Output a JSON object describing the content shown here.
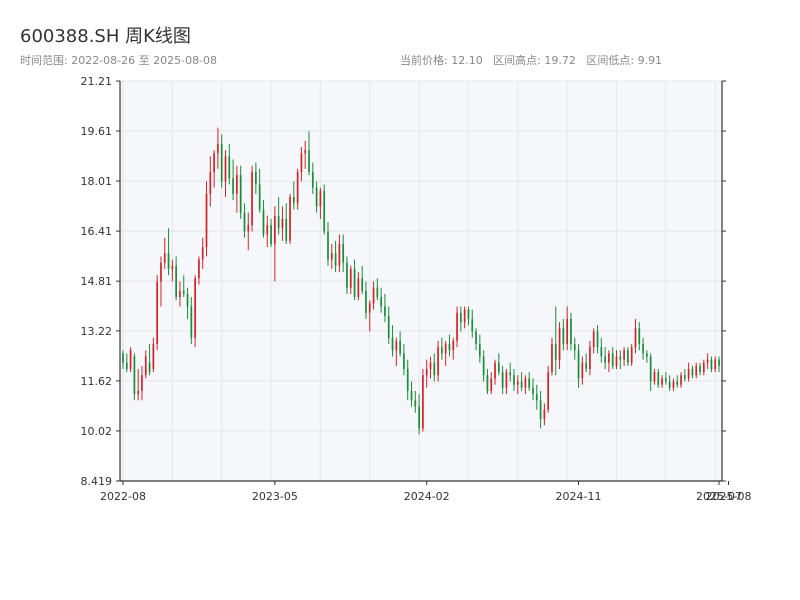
{
  "header": {
    "title": "600388.SH 周K线图",
    "range_text": "时间范围: 2022-08-26 至 2025-08-08",
    "stats_text": "当前价格: 12.10   区间高点: 19.72   区间低点: 9.91"
  },
  "colors": {
    "up": "#d0242a",
    "down": "#1a8c3b",
    "plot_bg": "#f5f7fa",
    "grid": "#e3e6ec",
    "axis": "#333333",
    "tick_text": "#333333"
  },
  "chart_data": {
    "type": "candlestick",
    "title": "600388.SH 周K线图",
    "ylim": [
      8.419,
      21.21
    ],
    "y_ticks": [
      "8.419",
      "10.02",
      "11.62",
      "13.22",
      "14.81",
      "16.41",
      "18.01",
      "19.61",
      "21.21"
    ],
    "y_tick_values": [
      8.419,
      10.02,
      11.62,
      13.22,
      14.81,
      16.41,
      18.01,
      19.61,
      21.21
    ],
    "x_ticks": [
      "2022-08",
      "2023-05",
      "2024-02",
      "2024-11",
      "2025-07",
      "2025-08"
    ],
    "x_tick_weeks": [
      0,
      40,
      80,
      120,
      157,
      159.5
    ],
    "grid": true,
    "candles_ohlc": [
      [
        12.5,
        12.6,
        12.0,
        12.2
      ],
      [
        12.2,
        12.5,
        11.9,
        12.0
      ],
      [
        12.0,
        12.7,
        11.9,
        12.6
      ],
      [
        12.4,
        12.5,
        11.0,
        11.2
      ],
      [
        11.2,
        12.0,
        11.0,
        11.3
      ],
      [
        11.3,
        12.1,
        11.0,
        11.8
      ],
      [
        11.8,
        12.6,
        11.7,
        12.4
      ],
      [
        12.2,
        12.8,
        11.8,
        11.9
      ],
      [
        12.0,
        13.0,
        11.9,
        12.8
      ],
      [
        12.8,
        15.0,
        12.6,
        14.8
      ],
      [
        14.8,
        15.6,
        14.0,
        15.4
      ],
      [
        15.4,
        16.2,
        15.2,
        15.7
      ],
      [
        15.7,
        16.5,
        15.0,
        15.2
      ],
      [
        15.2,
        15.5,
        14.8,
        15.3
      ],
      [
        15.3,
        15.6,
        14.2,
        14.3
      ],
      [
        14.3,
        14.8,
        14.0,
        14.5
      ],
      [
        14.5,
        15.0,
        14.3,
        14.4
      ],
      [
        14.4,
        14.6,
        13.6,
        14.0
      ],
      [
        14.0,
        14.3,
        12.8,
        13.0
      ],
      [
        13.0,
        15.0,
        12.7,
        14.9
      ],
      [
        14.9,
        15.6,
        14.7,
        15.5
      ],
      [
        15.5,
        16.2,
        15.2,
        15.9
      ],
      [
        15.9,
        18.0,
        15.6,
        17.6
      ],
      [
        17.6,
        18.8,
        17.2,
        18.3
      ],
      [
        18.3,
        19.0,
        17.8,
        18.9
      ],
      [
        18.9,
        19.72,
        18.4,
        19.2
      ],
      [
        19.2,
        19.5,
        17.8,
        18.0
      ],
      [
        18.0,
        19.0,
        17.5,
        18.8
      ],
      [
        18.8,
        19.2,
        17.9,
        18.1
      ],
      [
        18.1,
        18.7,
        17.4,
        17.6
      ],
      [
        17.6,
        18.5,
        17.0,
        18.2
      ],
      [
        18.2,
        18.5,
        16.8,
        17.0
      ],
      [
        17.0,
        17.3,
        16.2,
        16.4
      ],
      [
        16.4,
        17.0,
        15.8,
        16.6
      ],
      [
        16.6,
        18.5,
        16.4,
        18.3
      ],
      [
        18.3,
        18.6,
        17.6,
        17.9
      ],
      [
        17.9,
        18.4,
        17.0,
        17.1
      ],
      [
        17.1,
        17.4,
        16.2,
        16.3
      ],
      [
        16.3,
        16.9,
        15.9,
        16.6
      ],
      [
        16.6,
        16.8,
        15.9,
        16.0
      ],
      [
        16.0,
        17.2,
        14.8,
        16.9
      ],
      [
        16.9,
        17.5,
        16.3,
        16.5
      ],
      [
        16.5,
        17.2,
        16.1,
        16.8
      ],
      [
        16.8,
        17.3,
        16.0,
        16.1
      ],
      [
        16.1,
        17.6,
        16.0,
        17.5
      ],
      [
        17.5,
        18.0,
        17.1,
        17.3
      ],
      [
        17.3,
        18.4,
        17.1,
        18.3
      ],
      [
        18.3,
        19.1,
        18.0,
        18.9
      ],
      [
        18.9,
        19.3,
        18.4,
        19.0
      ],
      [
        19.0,
        19.6,
        18.2,
        18.3
      ],
      [
        18.3,
        18.6,
        17.6,
        17.8
      ],
      [
        17.8,
        18.0,
        17.0,
        17.2
      ],
      [
        17.2,
        17.8,
        16.8,
        17.7
      ],
      [
        17.7,
        17.9,
        16.3,
        16.4
      ],
      [
        16.4,
        16.7,
        15.3,
        15.5
      ],
      [
        15.5,
        16.0,
        15.2,
        15.7
      ],
      [
        15.7,
        16.1,
        15.1,
        15.3
      ],
      [
        15.3,
        16.3,
        15.1,
        16.0
      ],
      [
        16.0,
        16.3,
        15.1,
        15.4
      ],
      [
        15.4,
        15.6,
        14.4,
        14.6
      ],
      [
        14.6,
        15.3,
        14.4,
        15.2
      ],
      [
        15.2,
        15.5,
        14.2,
        14.3
      ],
      [
        14.3,
        15.1,
        14.2,
        14.9
      ],
      [
        14.9,
        15.3,
        14.4,
        14.5
      ],
      [
        14.5,
        14.8,
        13.6,
        13.8
      ],
      [
        13.8,
        14.2,
        13.2,
        14.1
      ],
      [
        14.1,
        14.8,
        13.9,
        14.6
      ],
      [
        14.6,
        14.9,
        14.2,
        14.3
      ],
      [
        14.3,
        14.6,
        13.8,
        14.0
      ],
      [
        14.0,
        14.4,
        13.5,
        13.7
      ],
      [
        13.7,
        14.0,
        12.8,
        13.0
      ],
      [
        13.0,
        13.4,
        12.4,
        12.6
      ],
      [
        12.6,
        13.0,
        12.1,
        12.9
      ],
      [
        12.9,
        13.2,
        12.4,
        12.5
      ],
      [
        12.5,
        12.8,
        11.8,
        12.0
      ],
      [
        12.0,
        12.3,
        11.0,
        11.3
      ],
      [
        11.3,
        11.6,
        10.8,
        11.0
      ],
      [
        11.0,
        11.3,
        10.6,
        10.8
      ],
      [
        10.8,
        11.2,
        9.91,
        10.1
      ],
      [
        10.1,
        12.0,
        10.0,
        11.8
      ],
      [
        11.8,
        12.3,
        11.4,
        12.0
      ],
      [
        12.0,
        12.4,
        11.7,
        12.2
      ],
      [
        12.2,
        12.5,
        11.6,
        11.8
      ],
      [
        11.8,
        12.9,
        11.6,
        12.7
      ],
      [
        12.7,
        13.0,
        12.3,
        12.5
      ],
      [
        12.5,
        12.9,
        12.1,
        12.8
      ],
      [
        12.8,
        13.1,
        12.4,
        12.6
      ],
      [
        12.6,
        13.0,
        12.3,
        12.9
      ],
      [
        12.9,
        14.0,
        12.7,
        13.8
      ],
      [
        13.8,
        14.0,
        13.2,
        13.5
      ],
      [
        13.5,
        14.0,
        13.3,
        13.9
      ],
      [
        13.9,
        14.0,
        13.4,
        13.6
      ],
      [
        13.6,
        13.9,
        13.0,
        13.2
      ],
      [
        13.2,
        13.3,
        12.6,
        12.8
      ],
      [
        12.8,
        13.1,
        12.2,
        12.4
      ],
      [
        12.4,
        12.6,
        11.6,
        11.8
      ],
      [
        11.8,
        12.0,
        11.2,
        11.3
      ],
      [
        11.3,
        11.9,
        11.2,
        11.7
      ],
      [
        11.7,
        12.3,
        11.5,
        12.2
      ],
      [
        12.2,
        12.5,
        11.8,
        11.9
      ],
      [
        11.9,
        12.1,
        11.2,
        11.4
      ],
      [
        11.4,
        12.0,
        11.2,
        11.9
      ],
      [
        11.9,
        12.2,
        11.6,
        11.8
      ],
      [
        11.8,
        12.0,
        11.3,
        11.5
      ],
      [
        11.5,
        11.8,
        11.2,
        11.6
      ],
      [
        11.6,
        11.9,
        11.3,
        11.4
      ],
      [
        11.4,
        11.8,
        11.2,
        11.7
      ],
      [
        11.7,
        11.9,
        11.3,
        11.4
      ],
      [
        11.4,
        11.7,
        11.0,
        11.2
      ],
      [
        11.2,
        11.5,
        10.7,
        11.0
      ],
      [
        11.0,
        11.3,
        10.1,
        10.4
      ],
      [
        10.4,
        10.9,
        10.2,
        10.7
      ],
      [
        10.7,
        12.1,
        10.6,
        11.9
      ],
      [
        11.9,
        13.0,
        11.8,
        12.8
      ],
      [
        12.8,
        14.0,
        11.8,
        12.3
      ],
      [
        12.3,
        13.5,
        12.0,
        13.3
      ],
      [
        13.3,
        13.6,
        12.6,
        12.8
      ],
      [
        12.8,
        14.0,
        12.6,
        13.6
      ],
      [
        13.6,
        13.8,
        12.6,
        12.8
      ],
      [
        12.8,
        13.0,
        12.3,
        12.6
      ],
      [
        12.6,
        12.8,
        11.4,
        11.7
      ],
      [
        11.7,
        12.4,
        11.5,
        12.2
      ],
      [
        12.2,
        12.5,
        11.9,
        12.0
      ],
      [
        12.0,
        12.9,
        11.8,
        12.7
      ],
      [
        12.7,
        13.3,
        12.5,
        13.2
      ],
      [
        13.2,
        13.4,
        12.5,
        12.7
      ],
      [
        12.7,
        13.0,
        12.2,
        12.4
      ],
      [
        12.4,
        12.7,
        12.0,
        12.2
      ],
      [
        12.2,
        12.6,
        11.9,
        12.5
      ],
      [
        12.5,
        12.7,
        12.0,
        12.1
      ],
      [
        12.1,
        12.6,
        12.0,
        12.4
      ],
      [
        12.4,
        12.6,
        12.0,
        12.3
      ],
      [
        12.3,
        12.7,
        12.1,
        12.6
      ],
      [
        12.6,
        12.7,
        12.1,
        12.2
      ],
      [
        12.2,
        12.8,
        12.1,
        12.7
      ],
      [
        12.7,
        13.6,
        12.5,
        13.3
      ],
      [
        13.3,
        13.5,
        12.6,
        12.8
      ],
      [
        12.8,
        13.0,
        12.3,
        12.5
      ],
      [
        12.5,
        12.6,
        12.2,
        12.4
      ],
      [
        12.4,
        12.5,
        11.3,
        11.6
      ],
      [
        11.6,
        12.0,
        11.5,
        11.9
      ],
      [
        11.9,
        12.0,
        11.4,
        11.5
      ],
      [
        11.5,
        11.8,
        11.4,
        11.7
      ],
      [
        11.7,
        11.9,
        11.5,
        11.6
      ],
      [
        11.6,
        11.8,
        11.3,
        11.4
      ],
      [
        11.4,
        11.7,
        11.3,
        11.6
      ],
      [
        11.6,
        11.8,
        11.4,
        11.5
      ],
      [
        11.5,
        11.9,
        11.4,
        11.8
      ],
      [
        11.8,
        12.0,
        11.6,
        11.7
      ],
      [
        11.7,
        12.2,
        11.6,
        12.0
      ],
      [
        12.0,
        12.1,
        11.7,
        11.8
      ],
      [
        11.8,
        12.2,
        11.7,
        12.1
      ],
      [
        12.1,
        12.2,
        11.8,
        11.9
      ],
      [
        11.9,
        12.3,
        11.8,
        12.2
      ],
      [
        12.2,
        12.5,
        12.0,
        12.3
      ],
      [
        12.3,
        12.4,
        11.9,
        12.0
      ],
      [
        12.0,
        12.4,
        11.9,
        12.3
      ],
      [
        12.3,
        12.4,
        11.9,
        12.1
      ]
    ]
  }
}
